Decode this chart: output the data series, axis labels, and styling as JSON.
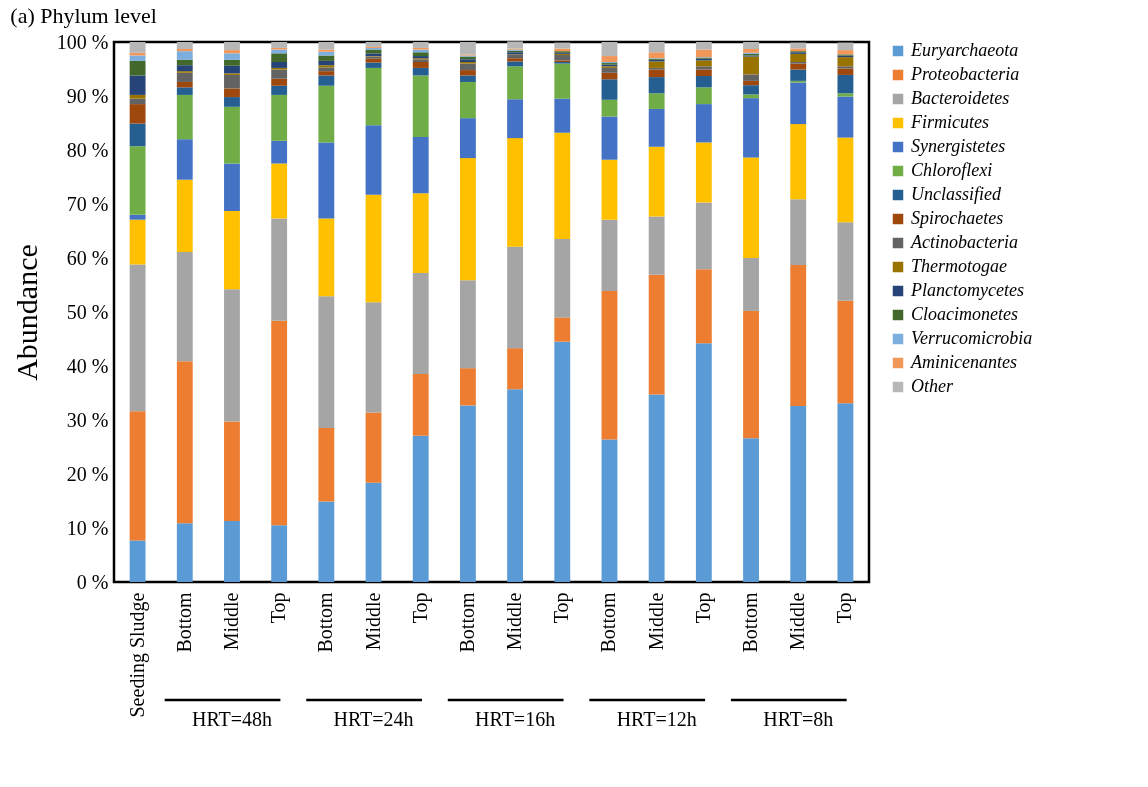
{
  "chart_data": {
    "type": "bar",
    "stacked": true,
    "title": "(a) Phylum level",
    "ylabel": "Abundance",
    "categories": [
      "Seeding Sludge",
      "Bottom",
      "Middle",
      "Top",
      "Bottom",
      "Middle",
      "Top",
      "Bottom",
      "Middle",
      "Top",
      "Bottom",
      "Middle",
      "Top",
      "Bottom",
      "Middle",
      "Top"
    ],
    "annotations": [
      "HRT=48h",
      "HRT=24h",
      "HRT=16h",
      "HRT=12h",
      "HRT=8h"
    ],
    "ylim": [
      0,
      100
    ],
    "yticks": [
      {
        "value": 0,
        "label": "0 %"
      },
      {
        "value": 10,
        "label": "10 %"
      },
      {
        "value": 20,
        "label": "20 %"
      },
      {
        "value": 30,
        "label": "30 %"
      },
      {
        "value": 40,
        "label": "40 %"
      },
      {
        "value": 50,
        "label": "50 %"
      },
      {
        "value": 60,
        "label": "60 %"
      },
      {
        "value": 70,
        "label": "70 %"
      },
      {
        "value": 80,
        "label": "80 %"
      },
      {
        "value": 90,
        "label": "90 %"
      },
      {
        "value": 100,
        "label": "100 %"
      }
    ],
    "grid": false,
    "legend": "right",
    "series": [
      {
        "name": "Euryarchaeota",
        "color": "#5b9bd5",
        "values": [
          7.7,
          10.9,
          11.3,
          10.5,
          14.9,
          18.4,
          27.1,
          32.7,
          35.7,
          44.5,
          26.4,
          34.7,
          44.2,
          26.6,
          32.6,
          33.1
        ]
      },
      {
        "name": "Proteobacteria",
        "color": "#ed7d31",
        "values": [
          23.9,
          30.0,
          18.4,
          37.9,
          13.6,
          13.0,
          11.4,
          6.9,
          7.6,
          4.5,
          27.5,
          22.2,
          13.7,
          23.6,
          26.1,
          19.0
        ]
      },
      {
        "name": "Bacteroidetes",
        "color": "#a5a5a5",
        "values": [
          27.2,
          20.2,
          24.5,
          18.9,
          24.4,
          20.4,
          18.7,
          16.3,
          18.8,
          14.5,
          13.2,
          10.8,
          12.4,
          9.8,
          12.2,
          14.5
        ]
      },
      {
        "name": "Firmicutes",
        "color": "#ffc000",
        "values": [
          8.3,
          13.4,
          14.5,
          10.2,
          14.4,
          19.9,
          14.8,
          22.6,
          20.1,
          19.7,
          11.1,
          12.9,
          11.1,
          18.6,
          13.9,
          15.7
        ]
      },
      {
        "name": "Synergistetes",
        "color": "#4472c4",
        "values": [
          0.9,
          7.5,
          8.8,
          4.2,
          14.1,
          12.9,
          10.4,
          7.4,
          7.2,
          6.3,
          8.0,
          7.0,
          7.1,
          11.0,
          7.7,
          7.6
        ]
      },
      {
        "name": "Chloroflexi",
        "color": "#70ad47",
        "values": [
          12.7,
          8.2,
          10.5,
          8.5,
          10.5,
          10.6,
          11.4,
          6.7,
          6.1,
          6.5,
          3.1,
          2.9,
          3.1,
          0.7,
          0.3,
          0.6
        ]
      },
      {
        "name": "Unclassified",
        "color": "#255e91",
        "values": [
          4.2,
          1.4,
          1.8,
          1.7,
          1.9,
          1.0,
          1.4,
          1.2,
          0.9,
          0.3,
          3.8,
          3.0,
          2.1,
          1.7,
          2.1,
          3.4
        ]
      },
      {
        "name": "Spirochaetes",
        "color": "#9e480e",
        "values": [
          3.6,
          1.0,
          1.6,
          1.3,
          0.8,
          0.7,
          1.1,
          1.0,
          0.6,
          0.3,
          1.2,
          1.4,
          1.2,
          0.8,
          1.1,
          1.2
        ]
      },
      {
        "name": "Actinobacteria",
        "color": "#636363",
        "values": [
          1.0,
          1.7,
          2.5,
          1.7,
          0.7,
          0.4,
          0.5,
          1.2,
          0.6,
          1.0,
          0.9,
          0.3,
          0.6,
          1.2,
          0.3,
          0.4
        ]
      },
      {
        "name": "Thermotogae",
        "color": "#997300",
        "values": [
          0.7,
          0.3,
          0.3,
          0.3,
          0.4,
          0.1,
          0.2,
          0.3,
          0.1,
          0.2,
          0.3,
          1.2,
          1.1,
          3.3,
          1.5,
          1.7
        ]
      },
      {
        "name": "Planctomycetes",
        "color": "#264478",
        "values": [
          3.6,
          1.1,
          1.4,
          1.1,
          0.8,
          0.5,
          0.4,
          0.5,
          0.4,
          0.2,
          0.3,
          0.3,
          0.3,
          0.2,
          0.3,
          0.3
        ]
      },
      {
        "name": "Cloacimonetes",
        "color": "#43682b",
        "values": [
          2.7,
          1.0,
          1.1,
          1.6,
          1.0,
          0.7,
          0.7,
          0.5,
          0.3,
          0.3,
          0.3,
          0.2,
          0.2,
          0.3,
          0.2,
          0.2
        ]
      },
      {
        "name": "Verrucomicrobia",
        "color": "#7cafdd",
        "values": [
          1.0,
          1.6,
          1.2,
          0.7,
          0.7,
          0.3,
          0.5,
          0.2,
          0.2,
          null,
          0.2,
          0.1,
          0.1,
          0.2,
          null,
          null
        ]
      },
      {
        "name": "Aminicenantes",
        "color": "#f1975a",
        "values": [
          0.5,
          0.4,
          0.6,
          0.3,
          0.4,
          0.2,
          0.3,
          0.2,
          0.2,
          0.5,
          1.1,
          1.1,
          1.4,
          0.7,
          0.5,
          0.8
        ]
      },
      {
        "name": "Other",
        "color": "#b7b7b7",
        "values": [
          2.0,
          1.3,
          1.5,
          1.1,
          1.4,
          0.9,
          1.1,
          2.3,
          1.3,
          1.1,
          2.6,
          1.9,
          1.4,
          1.3,
          1.1,
          1.4
        ]
      }
    ]
  }
}
